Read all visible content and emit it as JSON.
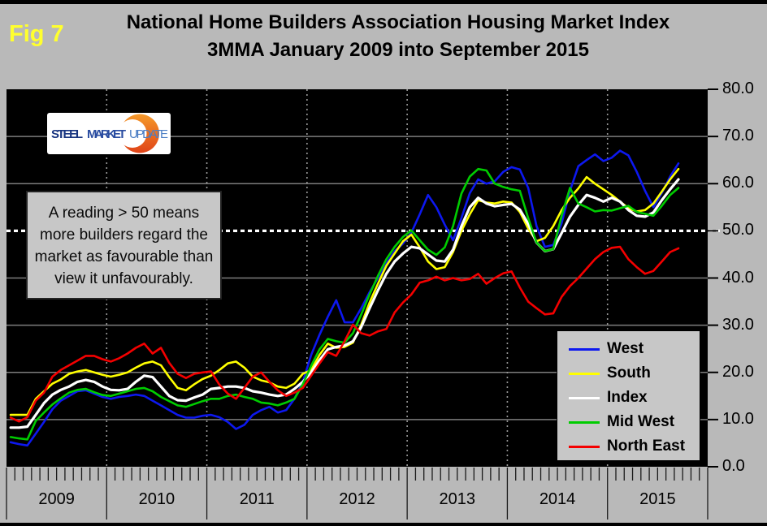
{
  "figure": {
    "fig_label": "Fig 7",
    "title_line1": "National Home Builders Association Housing Market Index",
    "title_line2": "3MMA January 2009 into September 2015"
  },
  "logo": {
    "word1": "STEEL",
    "word2": "MARKET",
    "word3": "UPDATE",
    "orange": "#e8541f",
    "orange_light": "#f59a2a",
    "navy": "#16337f",
    "mid_blue": "#2a4da1",
    "light_blue": "#4a7dc4"
  },
  "annotation": {
    "lines": [
      "A reading > 50 means",
      "more builders regard the",
      "market as favourable than",
      "view it unfavourably."
    ]
  },
  "colors": {
    "background": "#b9b9b9",
    "plot_background": "#000000",
    "gridline": "#7d7d7d",
    "year_gridline_dotted": "#999999",
    "reference_line": "#ffffff",
    "tick": "#1a1a1a",
    "fig_label": "#ffff2e"
  },
  "chart_data": {
    "type": "line",
    "title": "National Home Builders Association Housing Market Index 3MMA January 2009 into September 2015",
    "x_start": "2009-01",
    "x_end": "2015-09",
    "x_axis_span_months": 84,
    "points_per_series": 81,
    "ylim": [
      0,
      80
    ],
    "y_tick_step": 10,
    "y_tick_labels": [
      "80.0",
      "70.0",
      "60.0",
      "50.0",
      "40.0",
      "30.0",
      "20.0",
      "10.0",
      "0.0"
    ],
    "x_tick_labels": [
      "2009",
      "2010",
      "2011",
      "2012",
      "2013",
      "2014",
      "2015"
    ],
    "gridlines_y": [
      10,
      20,
      30,
      40,
      60,
      70
    ],
    "reference_line": {
      "value": 50,
      "style": "dotted",
      "color": "#ffffff"
    },
    "legend_position": "bottom-right",
    "series": [
      {
        "name": "West",
        "color": "#0d18ef",
        "width": 2.6,
        "values": [
          5.2,
          4.8,
          4.5,
          7.0,
          9.5,
          12.2,
          14.0,
          15.0,
          16.0,
          16.2,
          15.5,
          14.8,
          14.4,
          14.8,
          15.0,
          15.3,
          15.0,
          14.0,
          13.0,
          12.0,
          11.0,
          10.4,
          10.4,
          10.8,
          11.0,
          10.5,
          9.5,
          8.0,
          8.9,
          11.0,
          12.0,
          12.7,
          11.5,
          12.0,
          14.4,
          18.0,
          23.7,
          28.0,
          31.8,
          35.3,
          30.6,
          30.6,
          33.6,
          37.0,
          40.0,
          43.1,
          45.7,
          47.3,
          49.6,
          53.5,
          57.6,
          55.0,
          51.3,
          48.0,
          52.7,
          58.0,
          60.9,
          60.0,
          60.5,
          62.5,
          63.5,
          63.0,
          59.1,
          51.0,
          46.6,
          47.0,
          51.6,
          58.5,
          63.7,
          65.0,
          66.2,
          64.8,
          65.5,
          67.0,
          66.0,
          62.5,
          58.5,
          55.0,
          58.0,
          61.5,
          64.3
        ]
      },
      {
        "name": "South",
        "color": "#ffff00",
        "width": 2.6,
        "values": [
          11.0,
          11.0,
          11.0,
          14.4,
          16.0,
          17.6,
          18.5,
          19.7,
          20.2,
          20.5,
          20.0,
          19.5,
          19.1,
          19.5,
          20.0,
          21.0,
          21.9,
          22.3,
          21.5,
          19.0,
          16.7,
          16.2,
          17.5,
          18.6,
          19.3,
          20.5,
          21.9,
          22.3,
          21.0,
          19.1,
          18.3,
          17.9,
          17.0,
          16.7,
          17.6,
          19.7,
          20.5,
          23.7,
          26.1,
          25.2,
          25.4,
          26.3,
          30.1,
          34.8,
          38.8,
          42.6,
          45.2,
          47.8,
          49.2,
          46.5,
          43.5,
          41.9,
          42.3,
          45.5,
          50.0,
          53.5,
          56.5,
          56.0,
          55.8,
          56.2,
          56.0,
          54.0,
          50.5,
          47.8,
          48.5,
          51.0,
          54.4,
          57.0,
          59.0,
          61.4,
          60.0,
          58.8,
          57.6,
          56.2,
          54.8,
          54.1,
          54.4,
          55.8,
          58.3,
          60.9,
          63.1
        ]
      },
      {
        "name": "Index",
        "color": "#ffffff",
        "width": 3.2,
        "values": [
          8.3,
          8.3,
          8.5,
          11.0,
          13.5,
          15.3,
          16.3,
          17.0,
          18.0,
          18.4,
          18.0,
          17.0,
          16.3,
          16.2,
          16.5,
          18.0,
          19.3,
          19.0,
          17.0,
          15.0,
          14.1,
          14.0,
          14.7,
          15.3,
          16.5,
          16.7,
          17.0,
          17.0,
          16.7,
          16.0,
          15.7,
          15.3,
          15.0,
          15.3,
          16.5,
          18.0,
          20.0,
          22.6,
          24.9,
          25.4,
          25.7,
          26.6,
          29.6,
          33.6,
          37.4,
          40.9,
          43.5,
          45.2,
          46.6,
          46.3,
          45.0,
          43.7,
          43.5,
          46.0,
          51.0,
          55.0,
          57.0,
          55.8,
          55.2,
          55.5,
          55.7,
          54.5,
          51.5,
          47.5,
          45.7,
          46.1,
          49.5,
          53.0,
          55.5,
          57.6,
          57.0,
          56.2,
          57.0,
          56.2,
          54.4,
          53.2,
          53.0,
          53.9,
          56.5,
          58.8,
          60.9
        ]
      },
      {
        "name": "Mid West",
        "color": "#00cc00",
        "width": 2.6,
        "values": [
          6.3,
          6.0,
          5.8,
          9.7,
          11.5,
          13.2,
          14.5,
          15.7,
          16.3,
          16.5,
          15.8,
          15.2,
          15.0,
          15.5,
          16.0,
          16.5,
          16.7,
          16.0,
          14.8,
          13.9,
          13.0,
          12.7,
          13.3,
          13.9,
          14.4,
          14.4,
          15.0,
          15.3,
          14.8,
          14.4,
          13.6,
          13.4,
          13.0,
          13.6,
          14.4,
          17.5,
          21.4,
          24.9,
          27.1,
          26.6,
          26.3,
          28.3,
          32.3,
          36.5,
          40.5,
          44.0,
          46.6,
          48.7,
          50.1,
          48.0,
          46.0,
          44.9,
          46.5,
          51.0,
          57.9,
          61.5,
          63.1,
          62.8,
          60.0,
          59.3,
          58.8,
          58.5,
          52.7,
          47.5,
          45.7,
          46.1,
          53.2,
          59.1,
          55.8,
          55.0,
          54.1,
          54.4,
          54.3,
          54.8,
          55.3,
          54.0,
          53.6,
          53.2,
          55.3,
          57.6,
          59.1
        ]
      },
      {
        "name": "North East",
        "color": "#f40000",
        "width": 2.6,
        "values": [
          10.4,
          9.6,
          10.5,
          14.0,
          15.7,
          19.1,
          20.5,
          21.5,
          22.5,
          23.5,
          23.5,
          22.8,
          22.3,
          23.0,
          24.0,
          25.2,
          26.1,
          24.0,
          25.2,
          22.0,
          19.7,
          18.8,
          19.7,
          20.0,
          20.2,
          17.4,
          15.5,
          14.4,
          16.7,
          19.1,
          20.0,
          18.0,
          16.2,
          15.0,
          15.7,
          16.7,
          19.3,
          21.9,
          24.3,
          23.5,
          26.6,
          30.1,
          28.3,
          27.8,
          28.7,
          29.2,
          32.7,
          34.8,
          36.5,
          39.0,
          39.5,
          40.3,
          39.5,
          40.0,
          39.5,
          39.8,
          40.9,
          38.8,
          40.0,
          41.0,
          41.4,
          38.0,
          35.0,
          33.6,
          32.3,
          32.5,
          36.0,
          38.3,
          40.0,
          42.0,
          44.0,
          45.5,
          46.4,
          46.6,
          44.0,
          42.3,
          40.9,
          41.5,
          43.5,
          45.5,
          46.3
        ]
      }
    ]
  }
}
